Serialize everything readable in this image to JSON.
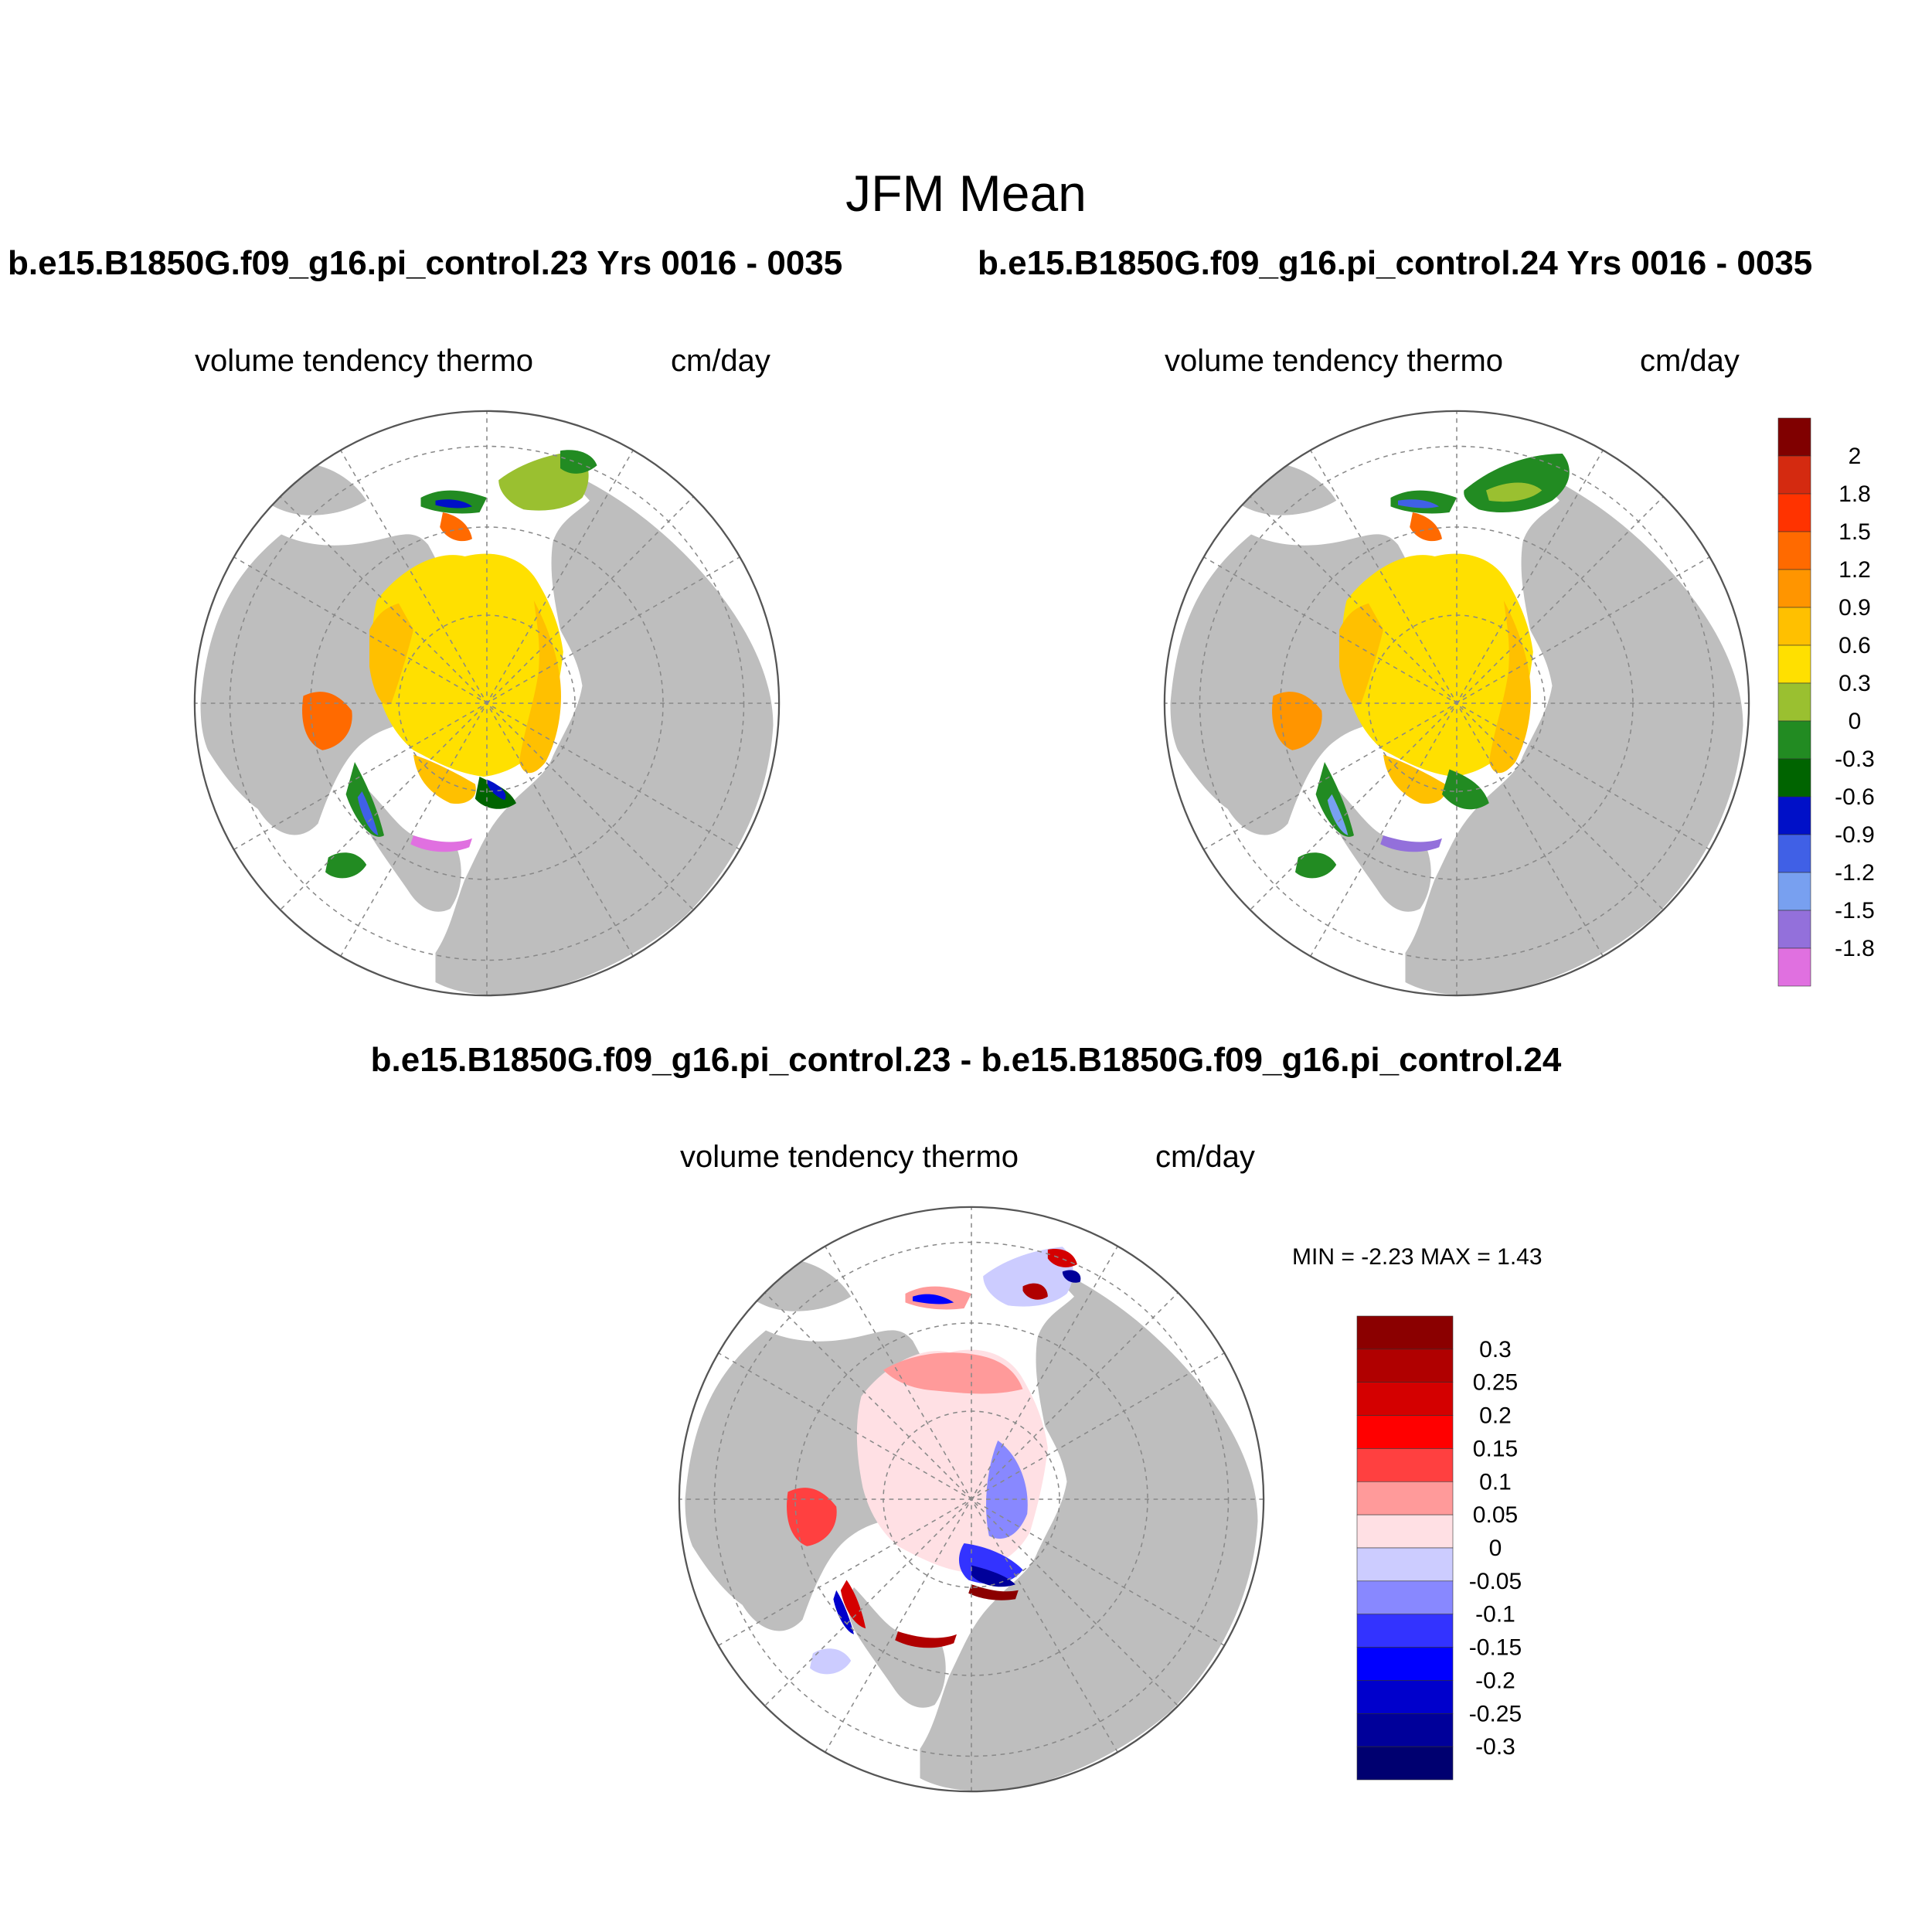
{
  "title": "JFM Mean",
  "panels": [
    {
      "case": "b.e15.B1850G.f09_g16.pi_control.23  Yrs 0016 - 0035",
      "variable": "volume tendency thermo",
      "units": "cm/day"
    },
    {
      "case": "b.e15.B1850G.f09_g16.pi_control.24  Yrs 0016 - 0035",
      "variable": "volume tendency thermo",
      "units": "cm/day"
    },
    {
      "case": "b.e15.B1850G.f09_g16.pi_control.23 - b.e15.B1850G.f09_g16.pi_control.24",
      "variable": "volume tendency thermo",
      "units": "cm/day",
      "min_label": "MIN =",
      "min_value": "-2.23",
      "max_label": "MAX =",
      "max_value": "1.43"
    }
  ],
  "colorbar_top": {
    "labels": [
      "2",
      "1.8",
      "1.5",
      "1.2",
      "0.9",
      "0.6",
      "0.3",
      "0",
      "-0.3",
      "-0.6",
      "-0.9",
      "-1.2",
      "-1.5",
      "-1.8"
    ],
    "colors": [
      "#800000",
      "#d42a10",
      "#ff3300",
      "#ff6a00",
      "#ff9500",
      "#ffc000",
      "#ffe000",
      "#9ac030",
      "#228b22",
      "#006400",
      "#0010c8",
      "#4060e6",
      "#78a0f0",
      "#9370db",
      "#e070e0"
    ]
  },
  "colorbar_diff": {
    "labels": [
      "0.3",
      "0.25",
      "0.2",
      "0.15",
      "0.1",
      "0.05",
      "0",
      "-0.05",
      "-0.1",
      "-0.15",
      "-0.2",
      "-0.25",
      "-0.3"
    ],
    "colors": [
      "#8b0000",
      "#b00000",
      "#d40000",
      "#ff0000",
      "#ff4040",
      "#ff9a9a",
      "#ffe0e4",
      "#ccccff",
      "#8888ff",
      "#3333ff",
      "#0000ff",
      "#0000cc",
      "#00009a",
      "#000070"
    ]
  },
  "colors": {
    "land": "#bebebe",
    "ocean": "#ffffff",
    "grid": "#888888"
  }
}
